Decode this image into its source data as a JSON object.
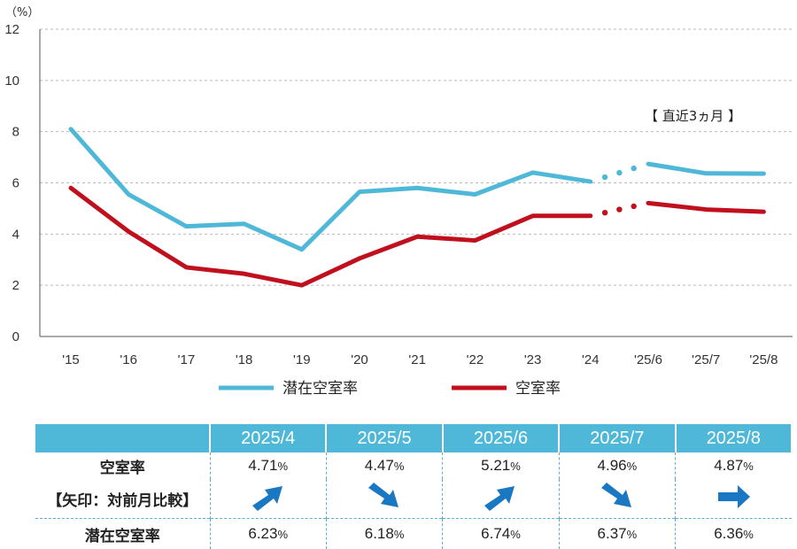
{
  "chart_data": {
    "type": "line",
    "unit_label": "（%）",
    "categories": [
      "'15",
      "'16",
      "'17",
      "'18",
      "'19",
      "'20",
      "'21",
      "'22",
      "'23",
      "'24",
      "'25/6",
      "'25/7",
      "'25/8"
    ],
    "ylim": [
      0,
      12
    ],
    "yticks": [
      0,
      2,
      4,
      6,
      8,
      10,
      12
    ],
    "grid": "horizontal-dashed",
    "legend_position": "bottom",
    "annotation": "【 直近3ヵ月 】",
    "series": [
      {
        "name": "潜在空室率",
        "color": "#4fb8d8",
        "values": [
          8.1,
          5.55,
          4.3,
          4.4,
          3.4,
          5.65,
          5.8,
          5.55,
          6.4,
          6.05,
          6.74,
          6.37,
          6.36
        ]
      },
      {
        "name": "空室率",
        "color": "#c0101e",
        "values": [
          5.8,
          4.1,
          2.7,
          2.45,
          2.0,
          3.05,
          3.9,
          3.75,
          4.71,
          4.71,
          5.21,
          4.96,
          4.87
        ]
      }
    ]
  },
  "table": {
    "headers": [
      "2025/4",
      "2025/5",
      "2025/6",
      "2025/7",
      "2025/8"
    ],
    "rate_label": "空室率",
    "arrow_note": "【矢印：対前月比較】",
    "latent_label": "潜在空室率",
    "pct_sign": "%",
    "rates": [
      "4.71",
      "4.47",
      "5.21",
      "4.96",
      "4.87"
    ],
    "latent": [
      "6.23",
      "6.18",
      "6.74",
      "6.37",
      "6.36"
    ],
    "arrows": [
      "up-right-arrow",
      "down-right-arrow",
      "up-right-arrow",
      "down-right-arrow",
      "right-arrow"
    ],
    "arrow_color": "#1a78c2"
  }
}
